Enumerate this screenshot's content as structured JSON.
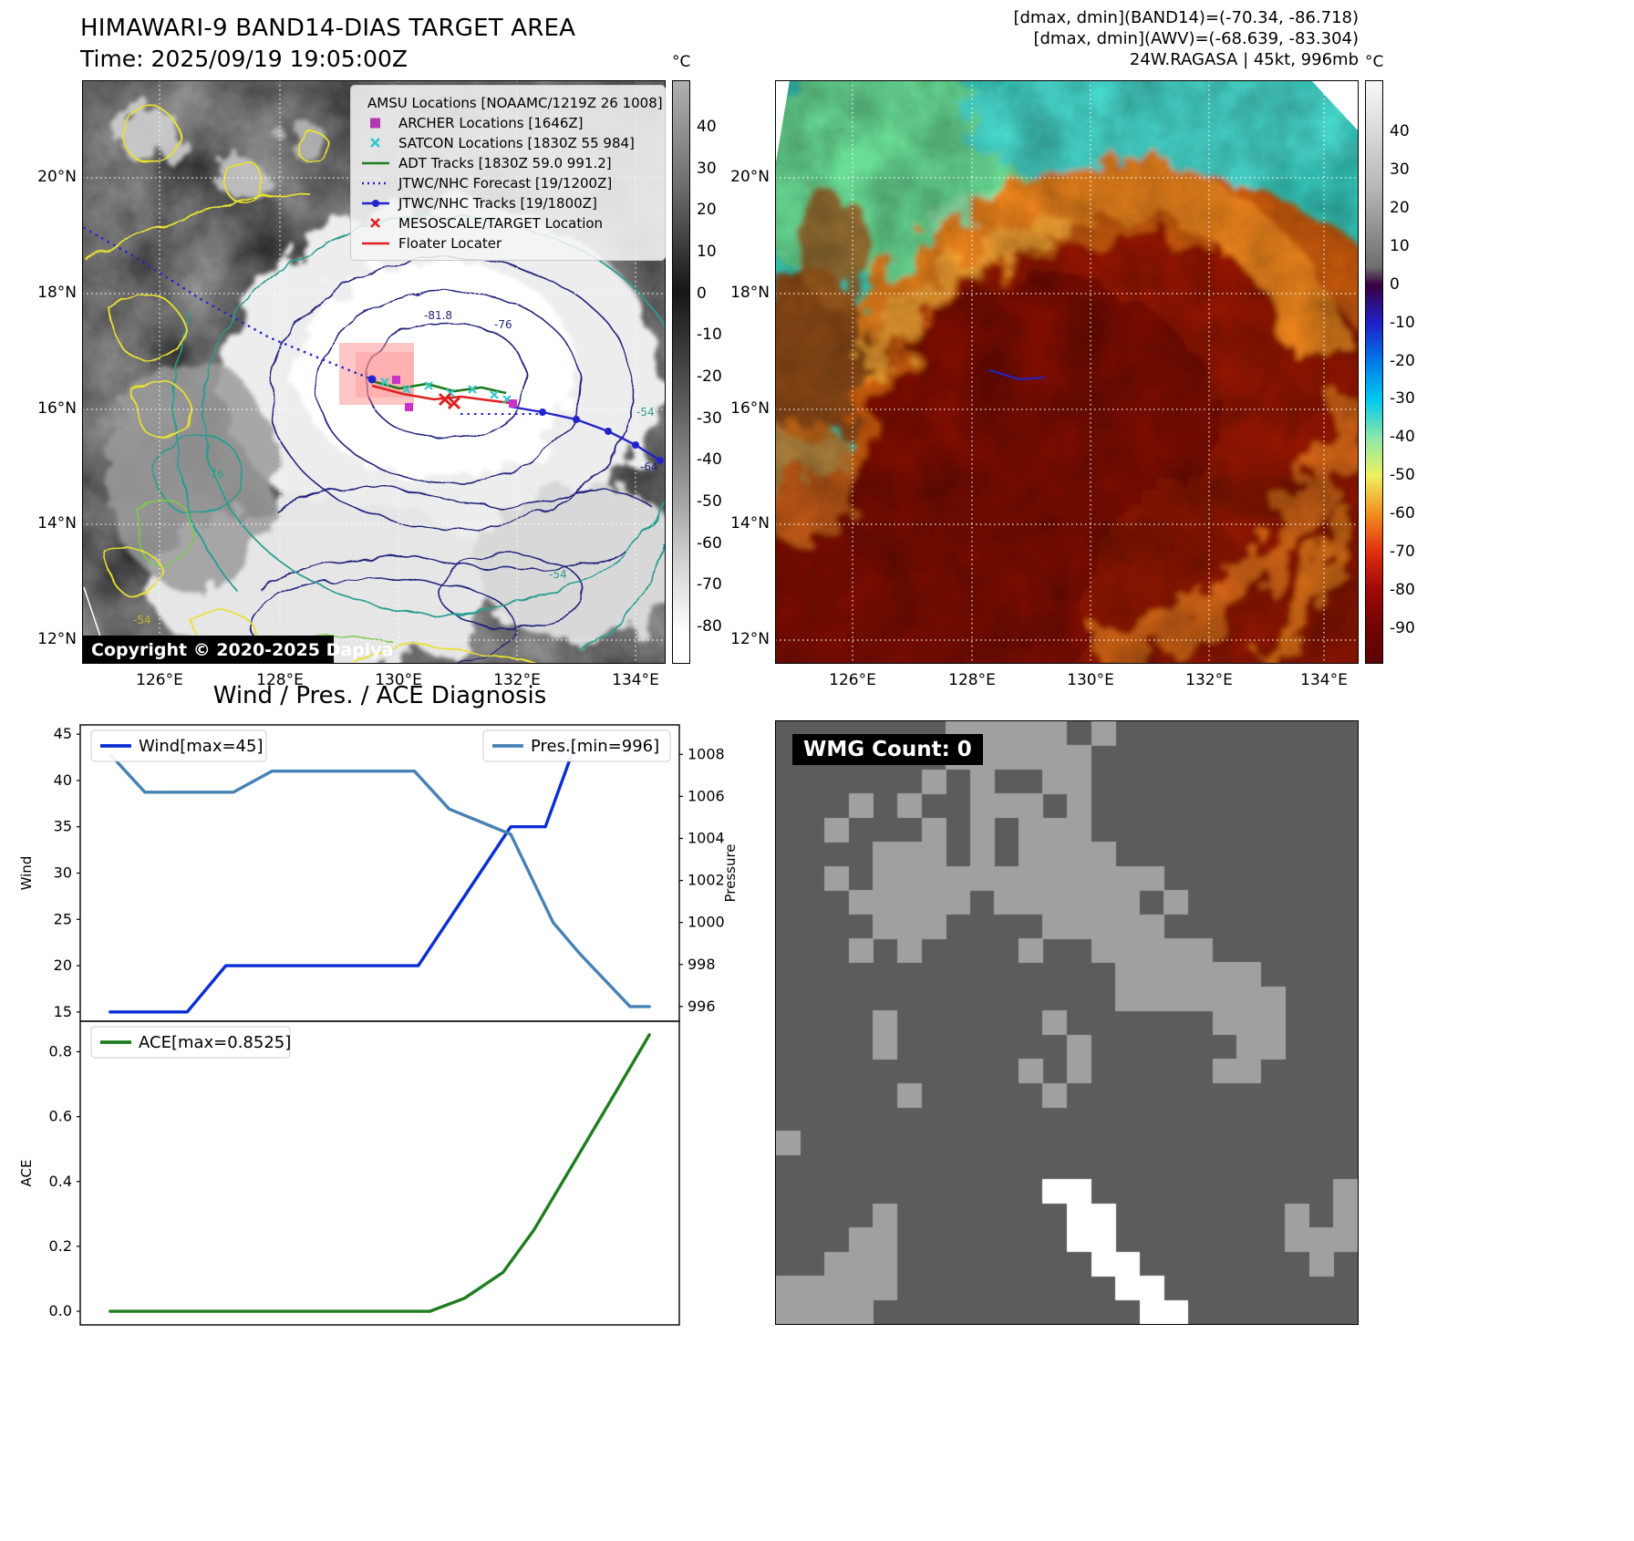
{
  "left_map": {
    "title": "HIMAWARI-9 BAND14-DIAS TARGET AREA",
    "subtitle": "Time: 2025/09/19 19:05:00Z",
    "copyright": "Copyright © 2020-2025 Dapiya",
    "colorbar": {
      "unit": "°C",
      "ticks": [
        "40",
        "30",
        "20",
        "10",
        "0",
        "-10",
        "-20",
        "-30",
        "-40",
        "-50",
        "-60",
        "-70",
        "-80"
      ]
    },
    "lat_ticks": [
      "20°N",
      "18°N",
      "16°N",
      "14°N",
      "12°N"
    ],
    "lon_ticks": [
      "126°E",
      "128°E",
      "130°E",
      "132°E",
      "134°E"
    ],
    "legend": [
      {
        "label": "AMSU Locations [NOAAMC/1219Z 26 1008]",
        "marker": "square",
        "color": "#cf4ccf",
        "icon": "amsu-square-marker"
      },
      {
        "label": "ARCHER Locations [1646Z]",
        "marker": "square",
        "color": "#b335b3",
        "icon": "archer-square-marker"
      },
      {
        "label": "SATCON Locations [1830Z 55 984]",
        "marker": "x",
        "color": "#2ec8c8",
        "icon": "satcon-x-marker"
      },
      {
        "label": "ADT Tracks [1830Z 59.0 991.2]",
        "marker": "line",
        "color": "#1e7d1e",
        "icon": "adt-line-marker"
      },
      {
        "label": "JTWC/NHC Forecast [19/1200Z]",
        "marker": "dotted",
        "color": "#2323cc",
        "icon": "forecast-dotted-marker"
      },
      {
        "label": "JTWC/NHC Tracks [19/1800Z]",
        "marker": "line-dot",
        "color": "#2323cc",
        "icon": "tracks-line-dot-marker"
      },
      {
        "label": "MESOSCALE/TARGET Location",
        "marker": "x",
        "color": "#e02020",
        "icon": "mesoscale-x-marker"
      },
      {
        "label": "Floater Locater",
        "marker": "line",
        "color": "#e02020",
        "icon": "floater-line-marker"
      }
    ],
    "contour_labels": [
      "-81.8",
      "-76",
      "-54",
      "-64",
      "-76",
      "-54",
      "-54"
    ]
  },
  "right_map": {
    "header_line1": "[dmax, dmin](BAND14)=(-70.34, -86.718)",
    "header_line2": "[dmax, dmin](AWV)=(-68.639, -83.304)",
    "header_line3": "24W.RAGASA | 45kt, 996mb",
    "colorbar": {
      "unit": "°C",
      "ticks": [
        "40",
        "30",
        "20",
        "10",
        "0",
        "-10",
        "-20",
        "-30",
        "-40",
        "-50",
        "-60",
        "-70",
        "-80",
        "-90"
      ]
    },
    "lat_ticks": [
      "20°N",
      "18°N",
      "16°N",
      "14°N",
      "12°N"
    ],
    "lon_ticks": [
      "126°E",
      "128°E",
      "130°E",
      "132°E",
      "134°E"
    ]
  },
  "charts": {
    "title": "Wind / Pres. / ACE Diagnosis"
  },
  "chart_data": [
    {
      "type": "line",
      "title": "Wind / Pres. / ACE Diagnosis (upper panel)",
      "x_range": [
        0,
        14
      ],
      "series": [
        {
          "name": "Wind[max=45]",
          "axis": "left",
          "color": "#0a2ed6",
          "x": [
            0,
            1,
            2,
            3,
            4,
            5,
            6,
            7,
            8,
            8.8,
            9.6,
            10.4,
            11.3,
            12
          ],
          "values": [
            15,
            15,
            15,
            20,
            20,
            20,
            20,
            20,
            20,
            25,
            30,
            35,
            35,
            43
          ]
        },
        {
          "name": "Pres.[min=996]",
          "axis": "right",
          "color": "#4682b4",
          "x": [
            0,
            0.9,
            2,
            3.2,
            4.2,
            6,
            7.9,
            8.8,
            9.6,
            10.4,
            11.5,
            12.2,
            13.5,
            14
          ],
          "values": [
            1008,
            1006.2,
            1006.2,
            1006.2,
            1007.2,
            1007.2,
            1007.2,
            1005.4,
            1004.8,
            1004.2,
            1000,
            998.5,
            996,
            996
          ]
        }
      ],
      "left_axis": {
        "label": "Wind",
        "ticks": [
          15,
          20,
          25,
          30,
          35,
          40,
          45
        ],
        "range": [
          14,
          46
        ]
      },
      "right_axis": {
        "label": "Pressure",
        "ticks": [
          996,
          998,
          1000,
          1002,
          1004,
          1006,
          1008
        ],
        "range": [
          995.3,
          1009.4
        ]
      },
      "legend_position": {
        "wind": "upper left",
        "pres": "upper right"
      }
    },
    {
      "type": "line",
      "title": "Wind / Pres. / ACE Diagnosis (lower panel)",
      "x_range": [
        0,
        14
      ],
      "series": [
        {
          "name": "ACE[max=0.8525]",
          "axis": "left",
          "color": "#1e7d1e",
          "x": [
            0,
            2,
            4,
            6,
            8.3,
            9.2,
            10.2,
            11,
            12,
            13,
            14
          ],
          "values": [
            0,
            0,
            0,
            0,
            0,
            0.04,
            0.12,
            0.25,
            0.45,
            0.65,
            0.8525
          ]
        }
      ],
      "left_axis": {
        "label": "ACE",
        "ticks": [
          "0.0",
          "0.2",
          "0.4",
          "0.6",
          "0.8"
        ],
        "range": [
          -0.042,
          0.894
        ]
      },
      "legend_position": {
        "ace": "upper left"
      }
    }
  ],
  "wmg": {
    "label": "WMG Count: 0",
    "count": 0,
    "colors": {
      "base": "#5c5c5c",
      "patch": "#a0a0a0",
      "highlight": "#ffffff"
    }
  }
}
